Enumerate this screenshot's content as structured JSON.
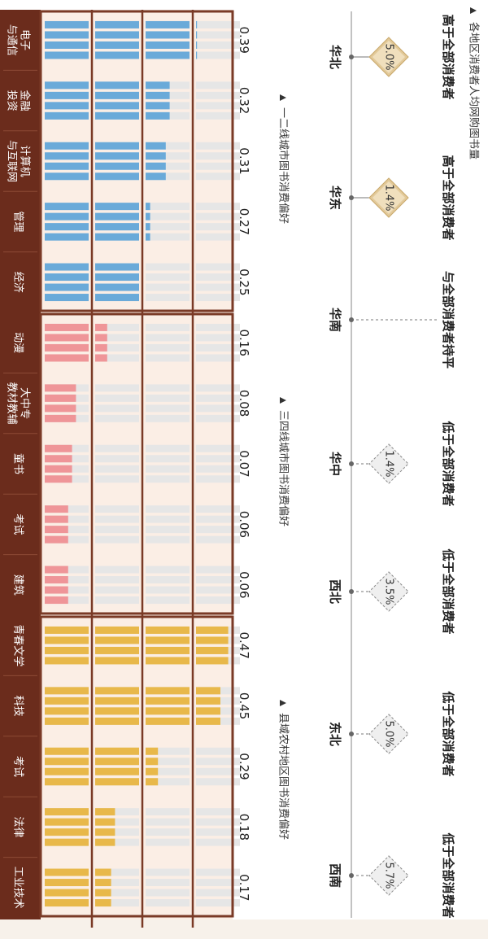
{
  "region_section": {
    "title": "各地区消费者人均网购图书量",
    "regions": [
      {
        "name": "华北",
        "tag": "高于全部消费者",
        "diff": "5.0%",
        "style": "gold"
      },
      {
        "name": "华东",
        "tag": "高于全部消费者",
        "diff": "1.4%",
        "style": "gold"
      },
      {
        "name": "华南",
        "tag": "与全部消费者持平",
        "diff": "",
        "style": "none"
      },
      {
        "name": "华中",
        "tag": "低于全部消费者",
        "diff": "1.4%",
        "style": "grey"
      },
      {
        "name": "西北",
        "tag": "低于全部消费者",
        "diff": "3.5%",
        "style": "grey"
      },
      {
        "name": "东北",
        "tag": "低于全部消费者",
        "diff": "5.0%",
        "style": "grey"
      },
      {
        "name": "西南",
        "tag": "低于全部消费者",
        "diff": "5.7%",
        "style": "grey"
      }
    ]
  },
  "colors": {
    "blue": "#6aaad9",
    "pink": "#ef9598",
    "gold": "#e8b84a",
    "dark": "#6b2c1c",
    "grey_cell": "#e6e6e6"
  },
  "chart_data": {
    "type": "bar",
    "groups": [
      {
        "title": "一二线城市图书消费偏好",
        "color": "blue",
        "categories": [
          "电子\n与通信",
          "金融\n投资",
          "计算机\n与互联网",
          "管理",
          "经济"
        ],
        "values": [
          0.39,
          0.32,
          0.31,
          0.27,
          0.25
        ]
      },
      {
        "title": "三四线城市图书消费偏好",
        "color": "pink",
        "categories": [
          "动漫",
          "大中专\n教材教辅",
          "童书",
          "考试",
          "建筑"
        ],
        "values": [
          0.16,
          0.08,
          0.07,
          0.06,
          0.06
        ]
      },
      {
        "title": "县域农村地区图书消费偏好",
        "color": "gold",
        "categories": [
          "青春文学",
          "科技",
          "考试",
          "法律",
          "工业技术"
        ],
        "values": [
          0.47,
          0.45,
          0.29,
          0.18,
          0.17
        ]
      }
    ]
  }
}
